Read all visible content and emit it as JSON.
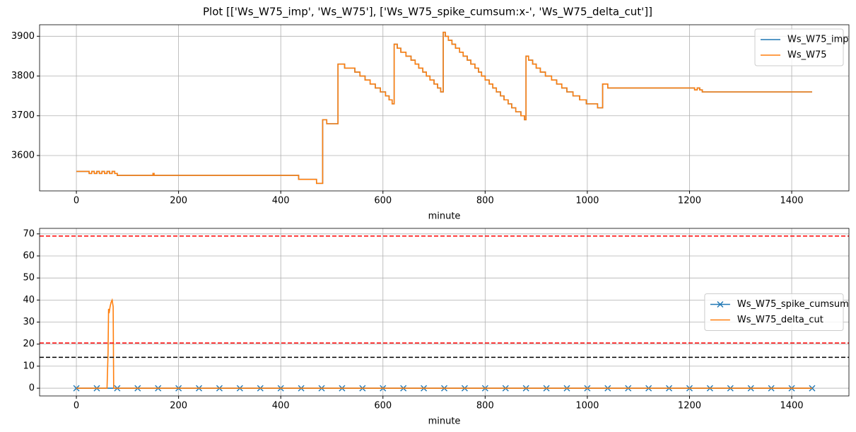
{
  "title": "Plot [['Ws_W75_imp', 'Ws_W75'], ['Ws_W75_spike_cumsum:x-', 'Ws_W75_delta_cut']]",
  "chart_data": [
    {
      "type": "line",
      "xlabel": "minute",
      "drawstyle": "steps-post",
      "grid": true,
      "legend": "upper right",
      "xlim": [
        -72,
        1512
      ],
      "ylim": [
        3511,
        3929
      ],
      "xticks": [
        0,
        200,
        400,
        600,
        800,
        1000,
        1200,
        1400
      ],
      "yticks": [
        3600,
        3700,
        3800,
        3900
      ],
      "series": [
        {
          "name": "Ws_W75_imp",
          "color": "#1f77b4",
          "x": [
            0,
            25,
            30,
            35,
            40,
            45,
            50,
            55,
            60,
            65,
            70,
            75,
            80,
            150,
            152,
            435,
            470,
            482,
            490,
            512,
            525,
            545,
            555,
            565,
            575,
            585,
            595,
            605,
            612,
            618,
            622,
            628,
            635,
            645,
            655,
            663,
            670,
            678,
            685,
            692,
            700,
            707,
            713,
            718,
            722,
            728,
            735,
            742,
            750,
            757,
            765,
            772,
            780,
            787,
            793,
            800,
            808,
            815,
            822,
            830,
            837,
            845,
            852,
            860,
            870,
            877,
            880,
            885,
            893,
            900,
            908,
            918,
            930,
            940,
            950,
            960,
            972,
            985,
            998,
            1020,
            1030,
            1040,
            1210,
            1215,
            1220,
            1225,
            1440
          ],
          "values": [
            3560,
            3555,
            3560,
            3555,
            3560,
            3555,
            3560,
            3555,
            3560,
            3555,
            3560,
            3555,
            3550,
            3555,
            3550,
            3540,
            3530,
            3690,
            3680,
            3830,
            3820,
            3810,
            3800,
            3790,
            3780,
            3770,
            3760,
            3750,
            3740,
            3730,
            3880,
            3870,
            3860,
            3850,
            3840,
            3830,
            3820,
            3810,
            3800,
            3790,
            3780,
            3770,
            3760,
            3910,
            3900,
            3890,
            3880,
            3870,
            3860,
            3850,
            3840,
            3830,
            3820,
            3810,
            3800,
            3790,
            3780,
            3770,
            3760,
            3750,
            3740,
            3730,
            3720,
            3710,
            3700,
            3690,
            3850,
            3840,
            3830,
            3820,
            3810,
            3800,
            3790,
            3780,
            3770,
            3760,
            3750,
            3740,
            3730,
            3720,
            3780,
            3770,
            3765,
            3770,
            3765,
            3760,
            3760
          ]
        },
        {
          "name": "Ws_W75",
          "color": "#ff7f0e",
          "x": [
            0,
            25,
            30,
            35,
            40,
            45,
            50,
            55,
            60,
            65,
            70,
            75,
            80,
            150,
            152,
            435,
            470,
            482,
            490,
            512,
            525,
            545,
            555,
            565,
            575,
            585,
            595,
            605,
            612,
            618,
            622,
            628,
            635,
            645,
            655,
            663,
            670,
            678,
            685,
            692,
            700,
            707,
            713,
            718,
            722,
            728,
            735,
            742,
            750,
            757,
            765,
            772,
            780,
            787,
            793,
            800,
            808,
            815,
            822,
            830,
            837,
            845,
            852,
            860,
            870,
            877,
            880,
            885,
            893,
            900,
            908,
            918,
            930,
            940,
            950,
            960,
            972,
            985,
            998,
            1020,
            1030,
            1040,
            1210,
            1215,
            1220,
            1225,
            1440
          ],
          "values": [
            3560,
            3555,
            3560,
            3555,
            3560,
            3555,
            3560,
            3555,
            3560,
            3555,
            3560,
            3555,
            3550,
            3555,
            3550,
            3540,
            3530,
            3690,
            3680,
            3830,
            3820,
            3810,
            3800,
            3790,
            3780,
            3770,
            3760,
            3750,
            3740,
            3730,
            3880,
            3870,
            3860,
            3850,
            3840,
            3830,
            3820,
            3810,
            3800,
            3790,
            3780,
            3770,
            3760,
            3910,
            3900,
            3890,
            3880,
            3870,
            3860,
            3850,
            3840,
            3830,
            3820,
            3810,
            3800,
            3790,
            3780,
            3770,
            3760,
            3750,
            3740,
            3730,
            3720,
            3710,
            3700,
            3690,
            3850,
            3840,
            3830,
            3820,
            3810,
            3800,
            3790,
            3780,
            3770,
            3760,
            3750,
            3740,
            3730,
            3720,
            3780,
            3770,
            3765,
            3770,
            3765,
            3760,
            3760
          ]
        }
      ]
    },
    {
      "type": "line",
      "xlabel": "minute",
      "grid": true,
      "legend": "center right",
      "xlim": [
        -72,
        1512
      ],
      "ylim": [
        -3.5,
        72.5
      ],
      "xticks": [
        0,
        200,
        400,
        600,
        800,
        1000,
        1200,
        1400
      ],
      "yticks": [
        0,
        10,
        20,
        30,
        40,
        50,
        60,
        70
      ],
      "hlines": [
        {
          "y": 69,
          "color": "#ff0000"
        },
        {
          "y": 20.5,
          "color": "#ff0000"
        },
        {
          "y": 14,
          "color": "#000000"
        }
      ],
      "series": [
        {
          "name": "Ws_W75_spike_cumsum",
          "color": "#1f77b4",
          "marker": "x",
          "x": [
            0,
            40,
            80,
            120,
            160,
            200,
            240,
            280,
            320,
            360,
            400,
            440,
            480,
            520,
            560,
            600,
            640,
            680,
            720,
            760,
            800,
            840,
            880,
            920,
            960,
            1000,
            1040,
            1080,
            1120,
            1160,
            1200,
            1240,
            1280,
            1320,
            1360,
            1400,
            1440
          ],
          "values": [
            0,
            0,
            0,
            0,
            0,
            0,
            0,
            0,
            0,
            0,
            0,
            0,
            0,
            0,
            0,
            0,
            0,
            0,
            0,
            0,
            0,
            0,
            0,
            0,
            0,
            0,
            0,
            0,
            0,
            0,
            0,
            0,
            0,
            0,
            0,
            0,
            0
          ]
        },
        {
          "name": "Ws_W75_delta_cut",
          "color": "#ff7f0e",
          "x": [
            0,
            60,
            62,
            63,
            64,
            66,
            68,
            70,
            72,
            73,
            1440
          ],
          "values": [
            0,
            0,
            16,
            36,
            34,
            37,
            39,
            40,
            37,
            0,
            0
          ]
        }
      ]
    }
  ]
}
